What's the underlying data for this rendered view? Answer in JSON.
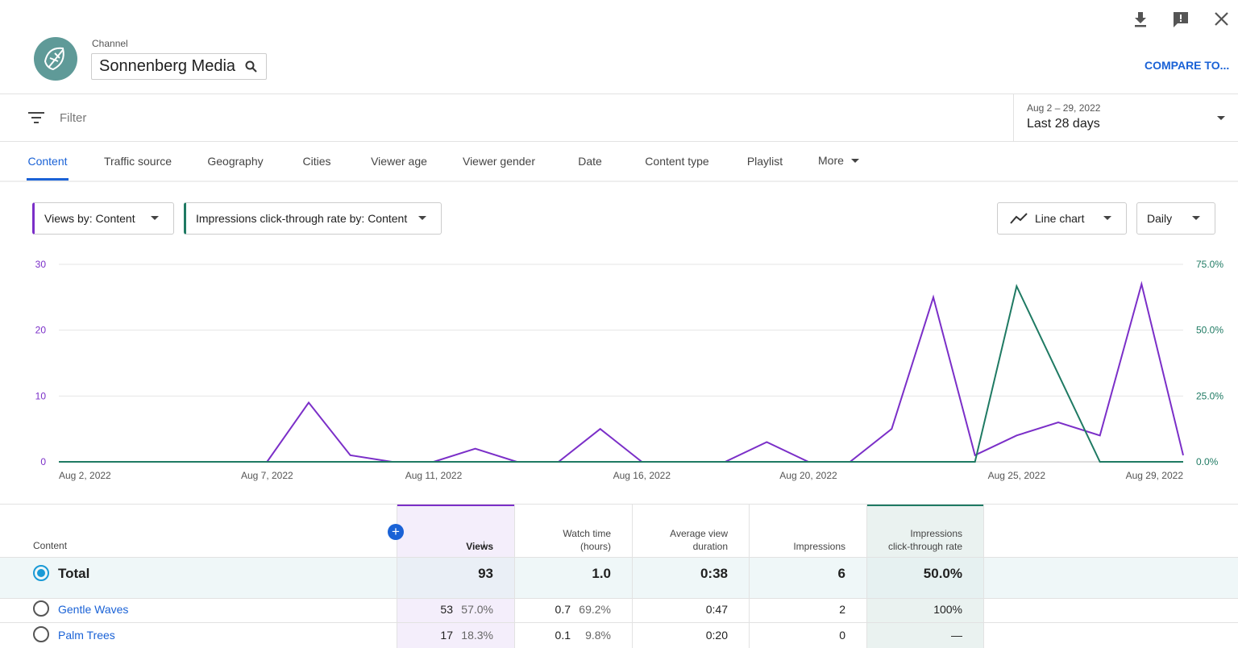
{
  "header": {
    "label": "Channel",
    "channel": "Sonnenberg Media",
    "compare": "COMPARE TO..."
  },
  "filter": {
    "placeholder": "Filter",
    "date_range": "Aug 2 – 29, 2022",
    "period": "Last 28 days"
  },
  "tabs": [
    "Content",
    "Traffic source",
    "Geography",
    "Cities",
    "Viewer age",
    "Viewer gender",
    "Date",
    "Content type",
    "Playlist"
  ],
  "more": "More",
  "controls": {
    "chart_kind": "Line chart",
    "interval": "Daily"
  },
  "chart_data": {
    "type": "line",
    "categories": [
      "Aug 2, 2022",
      null,
      null,
      null,
      null,
      "Aug 7, 2022",
      null,
      null,
      null,
      "Aug 11, 2022",
      null,
      null,
      null,
      null,
      "Aug 16, 2022",
      null,
      null,
      null,
      "Aug 20, 2022",
      null,
      null,
      null,
      null,
      "Aug 25, 2022",
      null,
      null,
      null,
      "Aug 29, 2022"
    ],
    "series": [
      {
        "name": "Views by: Content",
        "color": "#7b2fc8",
        "values": [
          0,
          0,
          0,
          0,
          0,
          0,
          9,
          1,
          0,
          0,
          2,
          0,
          0,
          5,
          0,
          0,
          0,
          3,
          0,
          0,
          5,
          25,
          1,
          4,
          6,
          4,
          27,
          1
        ]
      },
      {
        "name": "Impressions click-through rate by: Content",
        "color": "#1f7a63",
        "axis": "y2",
        "values": [
          0,
          0,
          0,
          0,
          0,
          0,
          0,
          0,
          0,
          0,
          0,
          0,
          0,
          0,
          0,
          0,
          0,
          0,
          0,
          0,
          0,
          0,
          0,
          66.7,
          33.3,
          0,
          0,
          0
        ]
      }
    ],
    "ylim": [
      0,
      30
    ],
    "yticks": [
      0,
      10,
      20,
      30
    ],
    "y2lim": [
      0,
      75
    ],
    "y2ticks": [
      {
        "value": 0,
        "label": "0.0%"
      },
      {
        "value": 25,
        "label": "25.0%"
      },
      {
        "value": 50,
        "label": "50.0%"
      },
      {
        "value": 75,
        "label": "75.0%"
      }
    ],
    "grid": true
  },
  "table": {
    "columns": [
      "Content",
      "Views",
      "Watch time (hours)",
      "Average view duration",
      "Impressions",
      "Impressions click-through rate"
    ],
    "rows": [
      {
        "name": "Total",
        "views": "93",
        "watch_time": "1.0",
        "avg_duration": "0:38",
        "impressions": "6",
        "ctr": "50.0%"
      },
      {
        "name": "Gentle Waves",
        "views": "53",
        "views_share": "57.0%",
        "watch_time": "0.7",
        "watch_share": "69.2%",
        "avg_duration": "0:47",
        "impressions": "2",
        "ctr": "100%"
      },
      {
        "name": "Palm Trees",
        "views": "17",
        "views_share": "18.3%",
        "watch_time": "0.1",
        "watch_share": "9.8%",
        "avg_duration": "0:20",
        "impressions": "0",
        "ctr": "—"
      }
    ]
  }
}
